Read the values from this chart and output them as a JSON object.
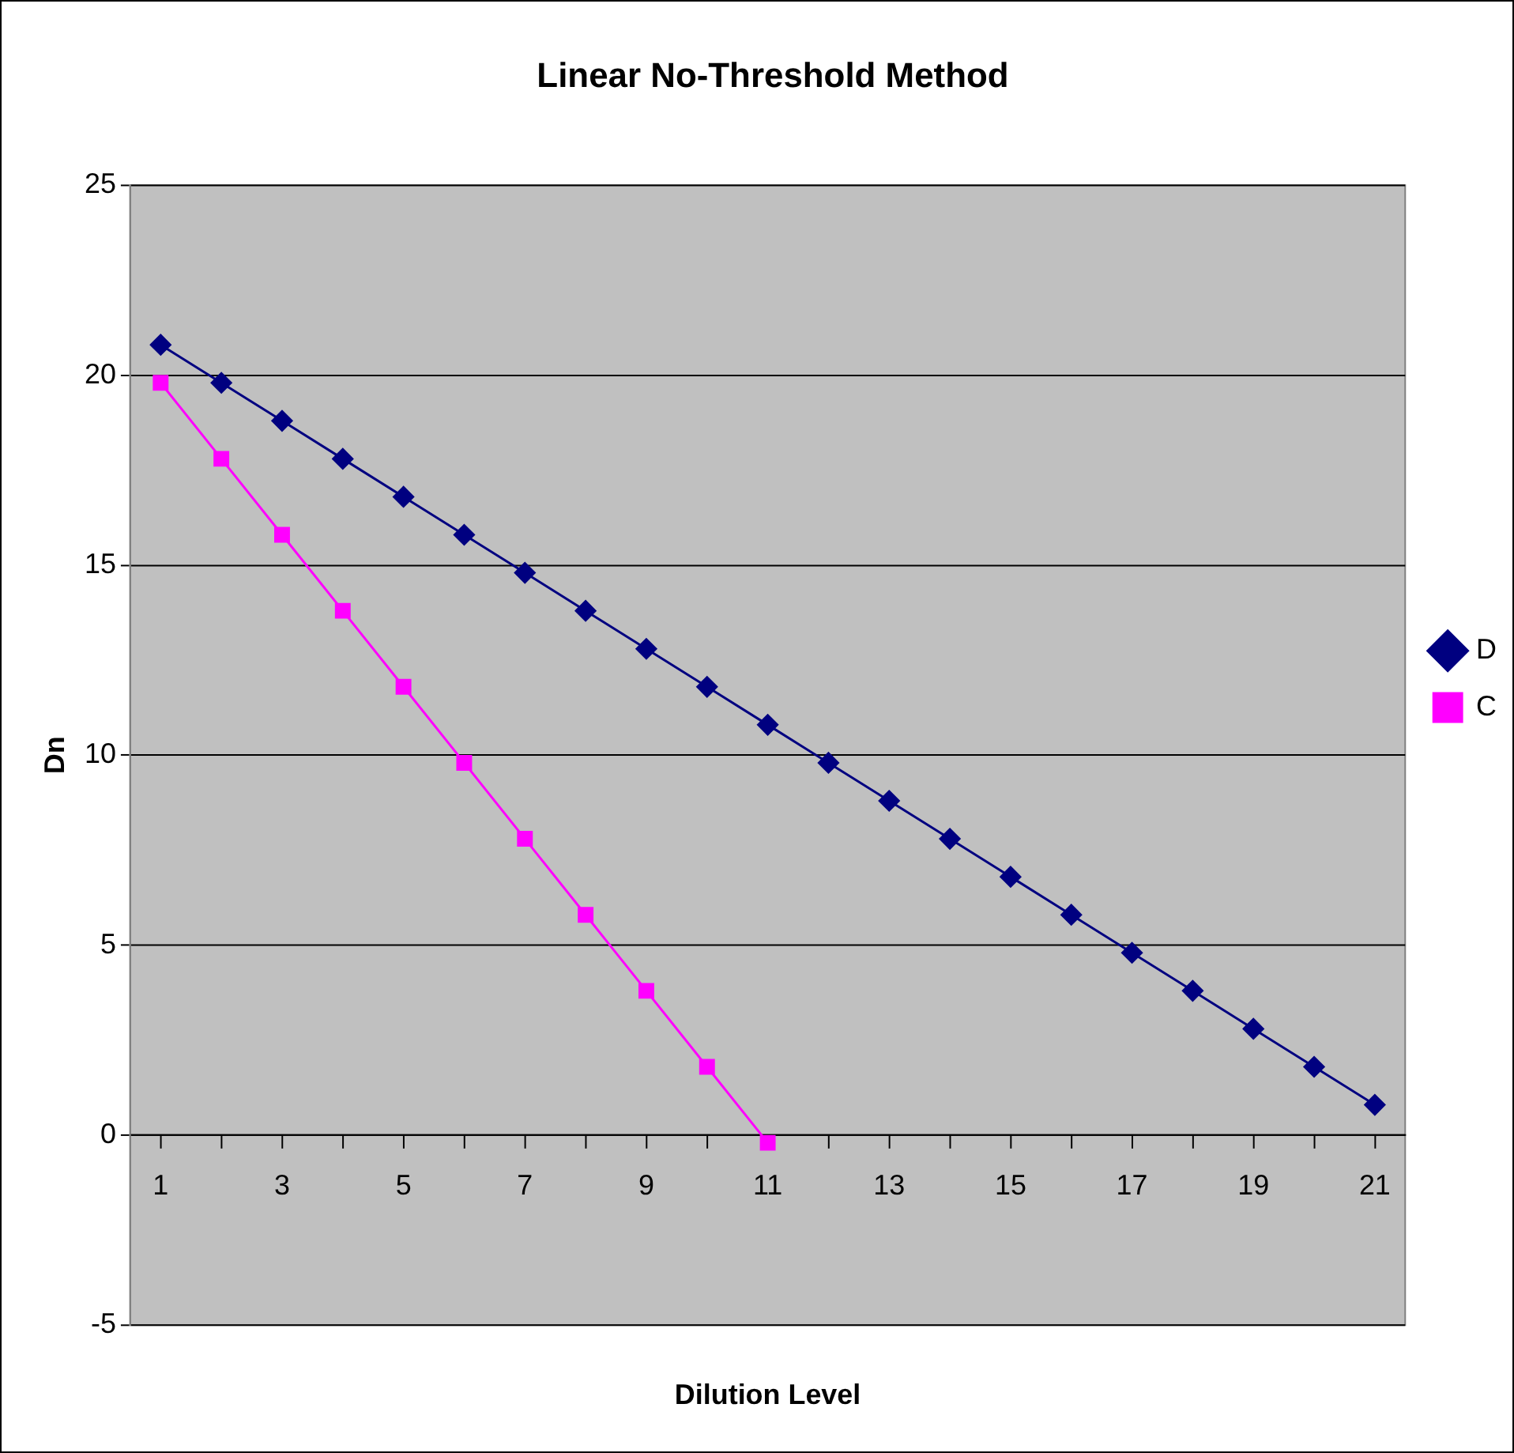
{
  "chart_data": {
    "type": "line",
    "title": "Linear No-Threshold Method",
    "xlabel": "Dilution Level",
    "ylabel": "Dn",
    "x": [
      1,
      2,
      3,
      4,
      5,
      6,
      7,
      8,
      9,
      10,
      11,
      12,
      13,
      14,
      15,
      16,
      17,
      18,
      19,
      20,
      21
    ],
    "xlim": [
      0.5,
      21.5
    ],
    "xticks": [
      1,
      {
        "value": 2,
        "label": null
      },
      3,
      {
        "value": 4,
        "label": null
      },
      5,
      {
        "value": 6,
        "label": null
      },
      7,
      {
        "value": 8,
        "label": null
      },
      9,
      {
        "value": 10,
        "label": null
      },
      11,
      {
        "value": 12,
        "label": null
      },
      13,
      {
        "value": 14,
        "label": null
      },
      15,
      {
        "value": 16,
        "label": null
      },
      17,
      {
        "value": 18,
        "label": null
      },
      19,
      {
        "value": 20,
        "label": null
      },
      21
    ],
    "series": [
      {
        "name": "D",
        "color": "#000080",
        "marker": "diamond",
        "values": [
          20.8,
          19.8,
          18.8,
          17.8,
          16.8,
          15.8,
          14.8,
          13.8,
          12.8,
          11.8,
          10.8,
          9.8,
          8.8,
          7.8,
          6.8,
          5.8,
          4.8,
          3.8,
          2.8,
          1.8,
          0.8
        ]
      },
      {
        "name": "C",
        "color": "#ff00ff",
        "marker": "square",
        "values": [
          19.8,
          17.8,
          15.8,
          13.8,
          11.8,
          9.8,
          7.8,
          5.8,
          3.8,
          1.8,
          -0.2,
          null,
          null,
          null,
          null,
          null,
          null,
          null,
          null,
          null,
          null
        ]
      }
    ],
    "ylim": [
      -5,
      25
    ],
    "yticks": [
      -5,
      0,
      5,
      10,
      15,
      20,
      25
    ],
    "grid": "y",
    "legend": "right"
  }
}
